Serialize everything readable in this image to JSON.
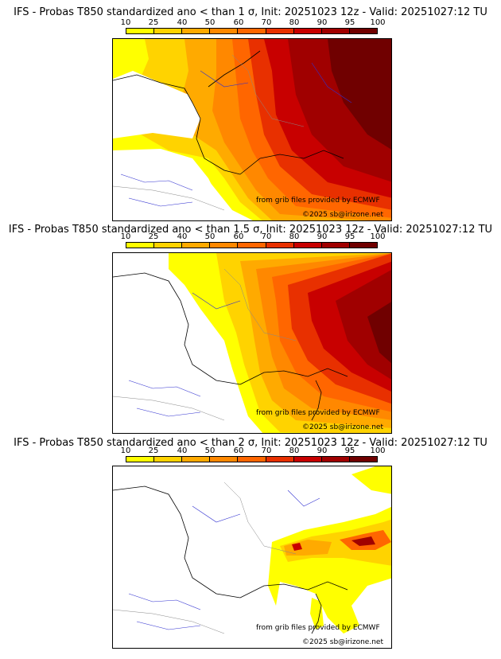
{
  "colorbar": {
    "ticks": [
      "10",
      "25",
      "40",
      "50",
      "60",
      "70",
      "80",
      "90",
      "95",
      "100"
    ],
    "colors": [
      "#ffff00",
      "#ffd300",
      "#ffaa00",
      "#ff8800",
      "#ff6600",
      "#e83000",
      "#c80000",
      "#a00000",
      "#700000"
    ]
  },
  "panels": [
    {
      "title": "IFS - Probas T850  standardized ano < than 1 σ, Init: 20251023 12z - Valid: 20251027:12 TU",
      "credit_source": "from grib files provided by ECMWF",
      "credit_copyright": "©2025 sb@irizone.net"
    },
    {
      "title": "IFS - Probas T850  standardized ano < than 1.5 σ, Init: 20251023 12z - Valid: 20251027:12 TU",
      "credit_source": "from grib files provided by ECMWF",
      "credit_copyright": "©2025 sb@irizone.net"
    },
    {
      "title": "IFS - Probas T850  standardized ano < than 2 σ, Init: 20251023 12z - Valid: 20251027:12 TU",
      "credit_source": "from grib files provided by ECMWF",
      "credit_copyright": "©2025 sb@irizone.net"
    }
  ]
}
